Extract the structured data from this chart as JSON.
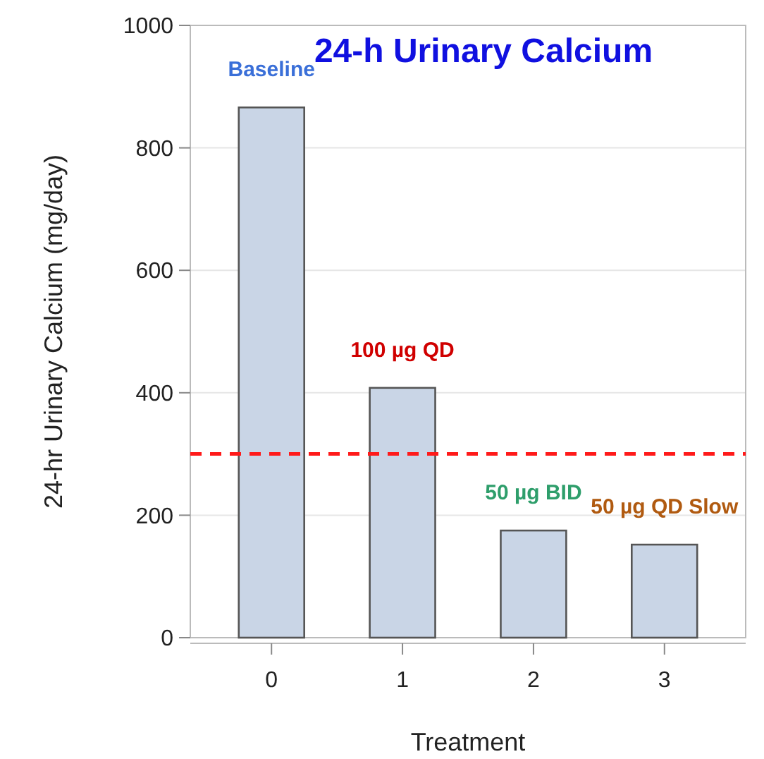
{
  "chart_data": {
    "type": "bar",
    "title": "24-h Urinary Calcium",
    "xlabel": "Treatment",
    "ylabel": "24-hr Urinary Calcium (mg/day)",
    "x": [
      0,
      1,
      2,
      3
    ],
    "values": [
      866,
      408,
      175,
      152
    ],
    "color": "#c9d5e6",
    "xlim": [
      -0.62,
      3.62
    ],
    "xticks": [
      0,
      1,
      2,
      3
    ],
    "ylim": [
      0,
      1000
    ],
    "yticks": [
      0,
      200,
      400,
      600,
      800,
      1000
    ],
    "grid": "y",
    "ref_lines": [
      {
        "axis": "y",
        "value": 300,
        "color": "#ff1a1a",
        "line_style": "dashed"
      }
    ],
    "annotations": [
      "Baseline",
      "100 µg QD",
      "50 µg BID",
      "50 µg QD Slow"
    ]
  }
}
